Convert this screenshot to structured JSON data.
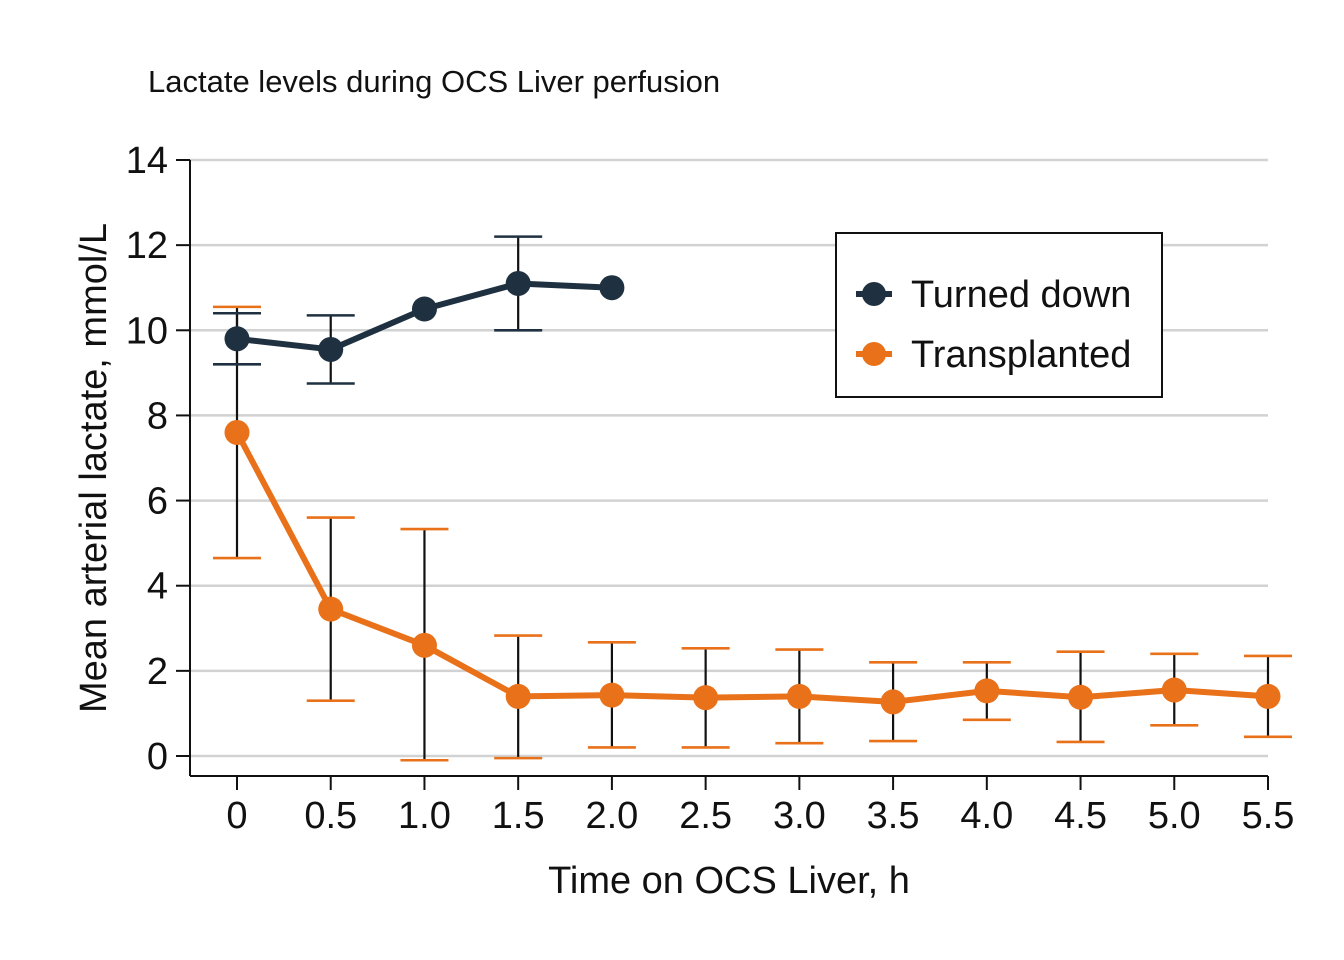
{
  "chart_data": {
    "type": "line",
    "title": "Lactate levels during OCS Liver perfusion",
    "xlabel": "Time on OCS Liver, h",
    "ylabel": "Mean arterial lactate, mmol/L",
    "x_ticks": [
      "0",
      "0.5",
      "1.0",
      "1.5",
      "2.0",
      "2.5",
      "3.0",
      "3.5",
      "4.0",
      "4.5",
      "5.0",
      "5.5"
    ],
    "y_ticks": [
      "0",
      "2",
      "4",
      "6",
      "8",
      "10",
      "12",
      "14"
    ],
    "xlim": [
      -0.25,
      5.5
    ],
    "ylim": [
      -0.5,
      14
    ],
    "grid": "horizontal",
    "legend_position": "top-right",
    "series": [
      {
        "name": "Turned down",
        "color": "#1f3140",
        "x": [
          0,
          0.5,
          1.0,
          1.5,
          2.0
        ],
        "y": [
          9.8,
          9.55,
          10.5,
          11.1,
          11.0
        ],
        "err_low": [
          9.2,
          8.75,
          null,
          10.0,
          null
        ],
        "err_high": [
          10.4,
          10.35,
          null,
          12.2,
          null
        ]
      },
      {
        "name": "Transplanted",
        "color": "#e8711a",
        "x": [
          0,
          0.5,
          1.0,
          1.5,
          2.0,
          2.5,
          3.0,
          3.5,
          4.0,
          4.5,
          5.0,
          5.5
        ],
        "y": [
          7.6,
          3.45,
          2.6,
          1.4,
          1.43,
          1.37,
          1.4,
          1.27,
          1.53,
          1.38,
          1.55,
          1.4
        ],
        "err_low": [
          4.65,
          1.3,
          -0.1,
          -0.05,
          0.2,
          0.2,
          0.3,
          0.35,
          0.85,
          0.33,
          0.72,
          0.45
        ],
        "err_high": [
          10.55,
          5.6,
          5.33,
          2.83,
          2.67,
          2.53,
          2.5,
          2.2,
          2.2,
          2.45,
          2.4,
          2.35
        ]
      }
    ]
  }
}
